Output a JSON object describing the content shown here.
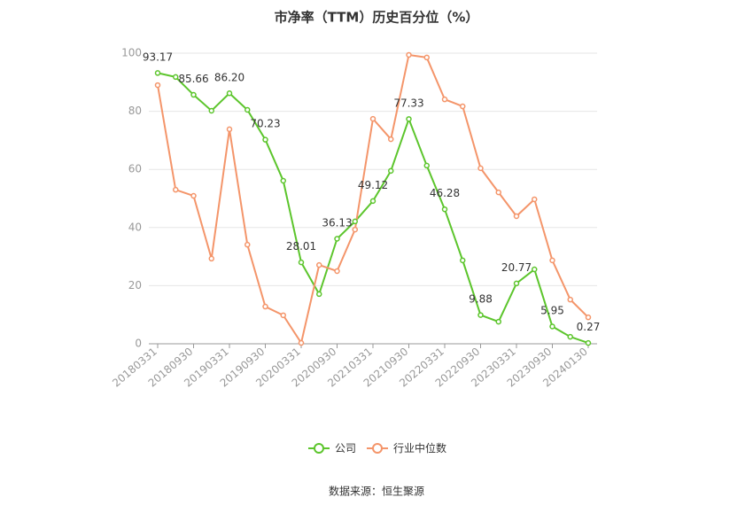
{
  "chart_data": {
    "type": "line",
    "title": "市净率（TTM）历史百分位（%）",
    "source": "数据来源：恒生聚源",
    "categories": [
      "20180331",
      null,
      "20180930",
      null,
      "20190331",
      null,
      "20190930",
      null,
      "20200331",
      null,
      "20200930",
      null,
      "20210331",
      null,
      "20210930",
      null,
      "20220331",
      null,
      "20220930",
      null,
      "20230331",
      null,
      "20230930",
      null,
      "20240130"
    ],
    "series": [
      {
        "name": "公司",
        "color": "#5cc52c",
        "values": [
          93.17,
          91.8,
          85.66,
          80.2,
          86.2,
          80.5,
          70.23,
          56.1,
          28.01,
          17.1,
          36.13,
          42.1,
          49.12,
          59.5,
          77.33,
          61.3,
          46.28,
          28.7,
          9.88,
          7.6,
          20.77,
          25.6,
          5.95,
          2.4,
          0.27
        ],
        "value_labels": [
          "93.17",
          null,
          "85.66",
          null,
          "86.20",
          null,
          "70.23",
          null,
          "28.01",
          null,
          "36.13",
          null,
          "49.12",
          null,
          "77.33",
          null,
          "46.28",
          null,
          "9.88",
          null,
          "20.77",
          null,
          "5.95",
          null,
          "0.27"
        ]
      },
      {
        "name": "行业中位数",
        "color": "#f4956a",
        "values": [
          89.0,
          53.0,
          50.9,
          29.3,
          73.8,
          34.1,
          12.8,
          9.8,
          0.3,
          27.1,
          25.0,
          39.3,
          77.4,
          70.4,
          99.4,
          98.5,
          84.1,
          81.7,
          60.4,
          52.1,
          43.9,
          49.7,
          28.7,
          15.2,
          9.1
        ]
      }
    ],
    "ylim": [
      0,
      100
    ],
    "yticks": [
      0,
      20,
      40,
      60,
      80,
      100
    ],
    "grid": true
  }
}
